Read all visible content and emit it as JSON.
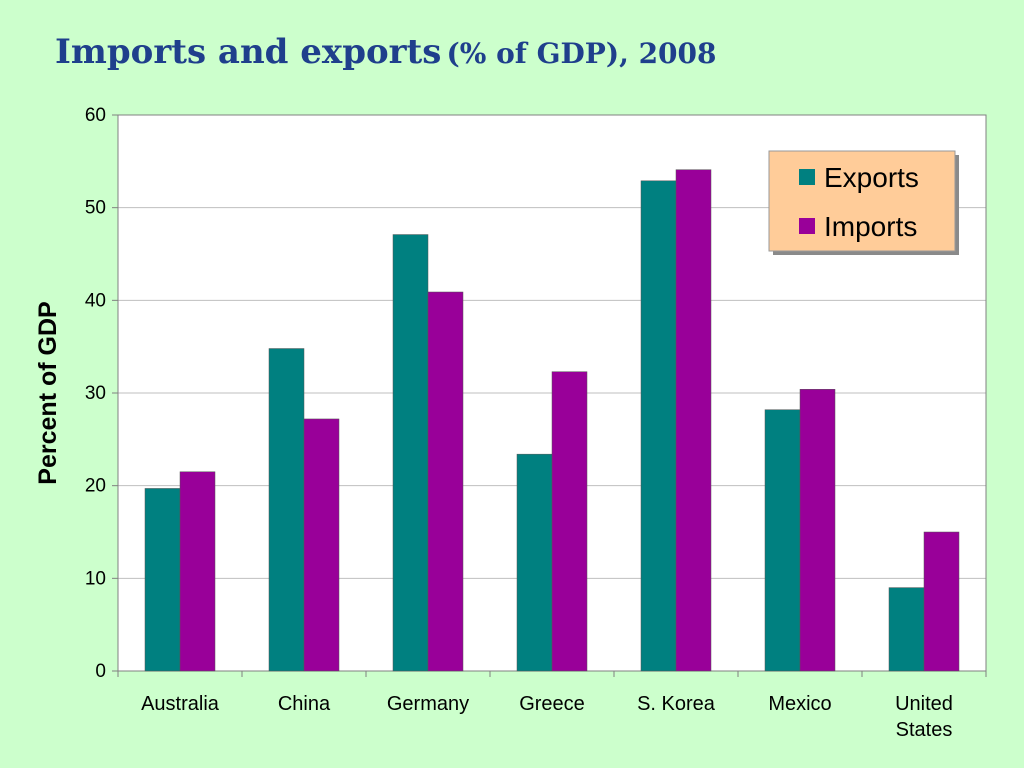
{
  "slide": {
    "title_main": "Imports and exports",
    "title_sub": "(% of GDP), 2008"
  },
  "colors": {
    "background": "#ccffcc",
    "title": "#1f3f8c",
    "exports": "#008080",
    "imports": "#990099",
    "legend_bg": "#ffcc99",
    "gridline": "#bfbfbf"
  },
  "chart_data": {
    "type": "bar",
    "title": "Imports and exports (% of GDP), 2008",
    "xlabel": "",
    "ylabel": "Percent of GDP",
    "ylim": [
      0,
      60
    ],
    "yticks": [
      0,
      10,
      20,
      30,
      40,
      50,
      60
    ],
    "grid": true,
    "legend_position": "top-right",
    "categories": [
      [
        "Australia"
      ],
      [
        "China"
      ],
      [
        "Germany"
      ],
      [
        "Greece"
      ],
      [
        "S. Korea"
      ],
      [
        "Mexico"
      ],
      [
        "United",
        "States"
      ]
    ],
    "series": [
      {
        "name": "Exports",
        "color": "#008080",
        "values": [
          19.7,
          34.8,
          47.1,
          23.4,
          52.9,
          28.2,
          9.0
        ]
      },
      {
        "name": "Imports",
        "color": "#990099",
        "values": [
          21.5,
          27.2,
          40.9,
          32.3,
          54.1,
          30.4,
          15.0
        ]
      }
    ]
  }
}
